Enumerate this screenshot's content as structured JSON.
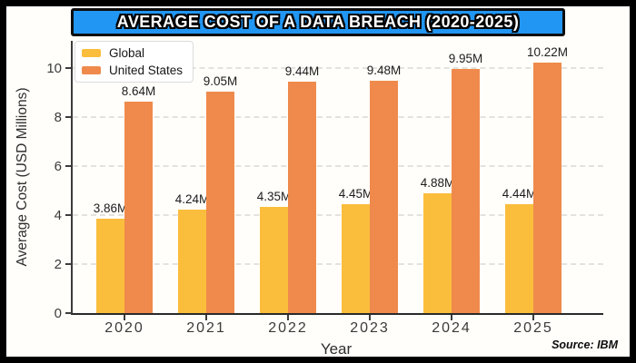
{
  "title": {
    "text": "AVERAGE COST OF A DATA BREACH (2020-2025)"
  },
  "colors": {
    "banner_blue": "#2196F3",
    "global_yellow": "#FBBD3C",
    "us_orange": "#EF8A4C",
    "grid": "#E4E2DD",
    "axis": "#3C3C3C"
  },
  "legend": {
    "items": [
      {
        "label": "Global",
        "color": "#FBBD3C"
      },
      {
        "label": "United States",
        "color": "#EF8A4C"
      }
    ]
  },
  "axes": {
    "y_label": "Average Cost (USD Millions)",
    "x_label": "Year",
    "y_ticks": [
      0,
      2,
      4,
      6,
      8,
      10
    ]
  },
  "source": "Source: IBM",
  "chart_data": {
    "type": "bar",
    "title": "AVERAGE COST OF A DATA BREACH (2020-2025)",
    "categories": [
      "2020",
      "2021",
      "2022",
      "2023",
      "2024",
      "2025"
    ],
    "series": [
      {
        "name": "Global",
        "color": "#FBBD3C",
        "values": [
          3.86,
          4.24,
          4.35,
          4.45,
          4.88,
          4.44
        ],
        "labels": [
          "3.86M",
          "4.24M",
          "4.35M",
          "4.45M",
          "4.88M",
          "4.44M"
        ]
      },
      {
        "name": "United States",
        "color": "#EF8A4C",
        "values": [
          8.64,
          9.05,
          9.44,
          9.48,
          9.95,
          10.22
        ],
        "labels": [
          "8.64M",
          "9.05M",
          "9.44M",
          "9.48M",
          "9.95M",
          "10.22M"
        ]
      }
    ],
    "xlabel": "Year",
    "ylabel": "Average Cost (USD Millions)",
    "ylim": [
      0,
      11.1
    ],
    "grid": true,
    "legend_position": "upper-left",
    "source": "Source: IBM"
  }
}
